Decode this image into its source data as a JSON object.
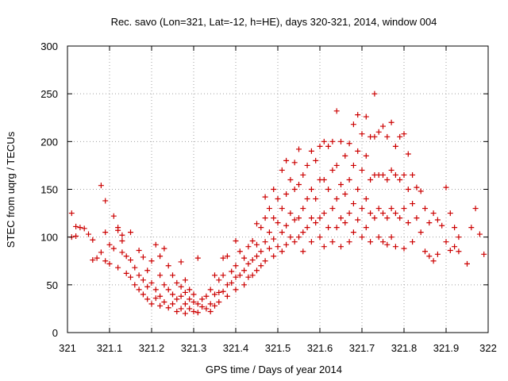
{
  "chart_data": {
    "type": "scatter",
    "title": "Rec. savo (Lon=321, Lat=-12, h=HE), days 320-321, 2014, window 004",
    "xlabel": "GPS time / Days of year 2014",
    "ylabel": "STEC from uqrg / TECUs",
    "xlim": [
      321,
      322
    ],
    "ylim": [
      0,
      300
    ],
    "xticks": [
      321,
      321.1,
      321.2,
      321.3,
      321.4,
      321.5,
      321.6,
      321.7,
      321.8,
      321.9,
      322
    ],
    "xtick_labels": [
      "321",
      "321.1",
      "321.2",
      "321.3",
      "321.4",
      "321.5",
      "321.6",
      "321.7",
      "321.8",
      "321.9",
      "322"
    ],
    "yticks": [
      0,
      50,
      100,
      150,
      200,
      250,
      300
    ],
    "ytick_labels": [
      "0",
      "50",
      "100",
      "150",
      "200",
      "250",
      "300"
    ],
    "grid": true,
    "marker": "plus",
    "marker_color": "#cc0000",
    "series": [
      {
        "name": "",
        "points": [
          [
            321.01,
            125
          ],
          [
            321.01,
            100
          ],
          [
            321.02,
            101
          ],
          [
            321.02,
            111
          ],
          [
            321.03,
            110
          ],
          [
            321.04,
            109
          ],
          [
            321.05,
            103
          ],
          [
            321.06,
            97
          ],
          [
            321.06,
            76
          ],
          [
            321.07,
            78
          ],
          [
            321.08,
            154
          ],
          [
            321.08,
            84
          ],
          [
            321.09,
            138
          ],
          [
            321.09,
            105
          ],
          [
            321.09,
            75
          ],
          [
            321.1,
            92
          ],
          [
            321.1,
            72
          ],
          [
            321.11,
            122
          ],
          [
            321.11,
            88
          ],
          [
            321.12,
            110
          ],
          [
            321.12,
            107
          ],
          [
            321.12,
            68
          ],
          [
            321.13,
            102
          ],
          [
            321.13,
            96
          ],
          [
            321.13,
            84
          ],
          [
            321.14,
            62
          ],
          [
            321.14,
            80
          ],
          [
            321.15,
            105
          ],
          [
            321.15,
            76
          ],
          [
            321.15,
            58
          ],
          [
            321.16,
            68
          ],
          [
            321.16,
            50
          ],
          [
            321.17,
            86
          ],
          [
            321.17,
            60
          ],
          [
            321.17,
            45
          ],
          [
            321.18,
            79
          ],
          [
            321.18,
            55
          ],
          [
            321.18,
            40
          ],
          [
            321.19,
            65
          ],
          [
            321.19,
            48
          ],
          [
            321.19,
            35
          ],
          [
            321.2,
            75
          ],
          [
            321.2,
            52
          ],
          [
            321.2,
            30
          ],
          [
            321.21,
            92
          ],
          [
            321.21,
            45
          ],
          [
            321.21,
            36
          ],
          [
            321.22,
            80
          ],
          [
            321.22,
            60
          ],
          [
            321.22,
            38
          ],
          [
            321.22,
            28
          ],
          [
            321.23,
            88
          ],
          [
            321.23,
            50
          ],
          [
            321.23,
            32
          ],
          [
            321.24,
            70
          ],
          [
            321.24,
            45
          ],
          [
            321.24,
            26
          ],
          [
            321.25,
            60
          ],
          [
            321.25,
            40
          ],
          [
            321.25,
            30
          ],
          [
            321.26,
            52
          ],
          [
            321.26,
            35
          ],
          [
            321.26,
            22
          ],
          [
            321.27,
            74
          ],
          [
            321.27,
            48
          ],
          [
            321.27,
            38
          ],
          [
            321.27,
            25
          ],
          [
            321.28,
            55
          ],
          [
            321.28,
            42
          ],
          [
            321.28,
            30
          ],
          [
            321.28,
            20
          ],
          [
            321.29,
            45
          ],
          [
            321.29,
            35
          ],
          [
            321.29,
            25
          ],
          [
            321.3,
            40
          ],
          [
            321.3,
            32
          ],
          [
            321.3,
            22
          ],
          [
            321.31,
            78
          ],
          [
            321.31,
            30
          ],
          [
            321.31,
            21
          ],
          [
            321.32,
            35
          ],
          [
            321.32,
            27
          ],
          [
            321.33,
            38
          ],
          [
            321.33,
            25
          ],
          [
            321.34,
            45
          ],
          [
            321.34,
            30
          ],
          [
            321.34,
            22
          ],
          [
            321.35,
            60
          ],
          [
            321.35,
            40
          ],
          [
            321.35,
            28
          ],
          [
            321.36,
            55
          ],
          [
            321.36,
            42
          ],
          [
            321.36,
            32
          ],
          [
            321.37,
            78
          ],
          [
            321.37,
            60
          ],
          [
            321.37,
            43
          ],
          [
            321.38,
            80
          ],
          [
            321.38,
            50
          ],
          [
            321.38,
            38
          ],
          [
            321.39,
            64
          ],
          [
            321.39,
            52
          ],
          [
            321.4,
            96
          ],
          [
            321.4,
            70
          ],
          [
            321.4,
            58
          ],
          [
            321.4,
            45
          ],
          [
            321.41,
            85
          ],
          [
            321.41,
            60
          ],
          [
            321.42,
            78
          ],
          [
            321.42,
            65
          ],
          [
            321.42,
            50
          ],
          [
            321.43,
            90
          ],
          [
            321.43,
            72
          ],
          [
            321.43,
            58
          ],
          [
            321.44,
            96
          ],
          [
            321.44,
            76
          ],
          [
            321.44,
            60
          ],
          [
            321.45,
            114
          ],
          [
            321.45,
            92
          ],
          [
            321.45,
            80
          ],
          [
            321.45,
            65
          ],
          [
            321.46,
            110
          ],
          [
            321.46,
            85
          ],
          [
            321.46,
            70
          ],
          [
            321.47,
            142
          ],
          [
            321.47,
            120
          ],
          [
            321.47,
            95
          ],
          [
            321.47,
            75
          ],
          [
            321.48,
            130
          ],
          [
            321.48,
            105
          ],
          [
            321.48,
            88
          ],
          [
            321.49,
            150
          ],
          [
            321.49,
            120
          ],
          [
            321.49,
            98
          ],
          [
            321.49,
            80
          ],
          [
            321.5,
            140
          ],
          [
            321.5,
            115
          ],
          [
            321.5,
            90
          ],
          [
            321.51,
            170
          ],
          [
            321.51,
            130
          ],
          [
            321.51,
            105
          ],
          [
            321.51,
            85
          ],
          [
            321.52,
            180
          ],
          [
            321.52,
            145
          ],
          [
            321.52,
            112
          ],
          [
            321.52,
            92
          ],
          [
            321.53,
            160
          ],
          [
            321.53,
            125
          ],
          [
            321.53,
            100
          ],
          [
            321.54,
            178
          ],
          [
            321.54,
            150
          ],
          [
            321.54,
            118
          ],
          [
            321.54,
            95
          ],
          [
            321.55,
            192
          ],
          [
            321.55,
            155
          ],
          [
            321.55,
            120
          ],
          [
            321.55,
            100
          ],
          [
            321.56,
            165
          ],
          [
            321.56,
            130
          ],
          [
            321.56,
            105
          ],
          [
            321.56,
            85
          ],
          [
            321.57,
            175
          ],
          [
            321.57,
            140
          ],
          [
            321.57,
            110
          ],
          [
            321.58,
            190
          ],
          [
            321.58,
            150
          ],
          [
            321.58,
            120
          ],
          [
            321.58,
            95
          ],
          [
            321.59,
            180
          ],
          [
            321.59,
            140
          ],
          [
            321.59,
            115
          ],
          [
            321.6,
            195
          ],
          [
            321.6,
            160
          ],
          [
            321.6,
            120
          ],
          [
            321.6,
            100
          ],
          [
            321.61,
            200
          ],
          [
            321.61,
            160
          ],
          [
            321.61,
            125
          ],
          [
            321.61,
            90
          ],
          [
            321.62,
            195
          ],
          [
            321.62,
            150
          ],
          [
            321.62,
            110
          ],
          [
            321.63,
            200
          ],
          [
            321.63,
            170
          ],
          [
            321.63,
            130
          ],
          [
            321.63,
            95
          ],
          [
            321.64,
            232
          ],
          [
            321.64,
            175
          ],
          [
            321.64,
            140
          ],
          [
            321.64,
            110
          ],
          [
            321.65,
            200
          ],
          [
            321.65,
            155
          ],
          [
            321.65,
            120
          ],
          [
            321.65,
            90
          ],
          [
            321.66,
            185
          ],
          [
            321.66,
            145
          ],
          [
            321.66,
            115
          ],
          [
            321.67,
            198
          ],
          [
            321.67,
            160
          ],
          [
            321.67,
            125
          ],
          [
            321.67,
            95
          ],
          [
            321.68,
            218
          ],
          [
            321.68,
            175
          ],
          [
            321.68,
            135
          ],
          [
            321.68,
            105
          ],
          [
            321.69,
            228
          ],
          [
            321.69,
            190
          ],
          [
            321.69,
            150
          ],
          [
            321.69,
            118
          ],
          [
            321.7,
            208
          ],
          [
            321.7,
            170
          ],
          [
            321.7,
            130
          ],
          [
            321.7,
            100
          ],
          [
            321.71,
            226
          ],
          [
            321.71,
            185
          ],
          [
            321.71,
            140
          ],
          [
            321.71,
            110
          ],
          [
            321.72,
            205
          ],
          [
            321.72,
            160
          ],
          [
            321.72,
            125
          ],
          [
            321.72,
            95
          ],
          [
            321.73,
            250
          ],
          [
            321.73,
            205
          ],
          [
            321.73,
            165
          ],
          [
            321.73,
            120
          ],
          [
            321.74,
            210
          ],
          [
            321.74,
            165
          ],
          [
            321.74,
            130
          ],
          [
            321.74,
            100
          ],
          [
            321.75,
            216
          ],
          [
            321.75,
            165
          ],
          [
            321.75,
            125
          ],
          [
            321.75,
            95
          ],
          [
            321.76,
            205
          ],
          [
            321.76,
            160
          ],
          [
            321.76,
            120
          ],
          [
            321.76,
            92
          ],
          [
            321.77,
            220
          ],
          [
            321.77,
            170
          ],
          [
            321.77,
            130
          ],
          [
            321.77,
            100
          ],
          [
            321.78,
            195
          ],
          [
            321.78,
            165
          ],
          [
            321.78,
            125
          ],
          [
            321.78,
            90
          ],
          [
            321.79,
            205
          ],
          [
            321.79,
            160
          ],
          [
            321.79,
            120
          ],
          [
            321.8,
            208
          ],
          [
            321.8,
            165
          ],
          [
            321.8,
            130
          ],
          [
            321.8,
            88
          ],
          [
            321.81,
            187
          ],
          [
            321.81,
            150
          ],
          [
            321.81,
            115
          ],
          [
            321.82,
            165
          ],
          [
            321.82,
            135
          ],
          [
            321.82,
            95
          ],
          [
            321.83,
            152
          ],
          [
            321.83,
            120
          ],
          [
            321.84,
            148
          ],
          [
            321.84,
            105
          ],
          [
            321.85,
            130
          ],
          [
            321.85,
            85
          ],
          [
            321.86,
            115
          ],
          [
            321.86,
            80
          ],
          [
            321.87,
            125
          ],
          [
            321.87,
            75
          ],
          [
            321.88,
            118
          ],
          [
            321.88,
            82
          ],
          [
            321.89,
            112
          ],
          [
            321.9,
            152
          ],
          [
            321.9,
            95
          ],
          [
            321.91,
            125
          ],
          [
            321.91,
            86
          ],
          [
            321.92,
            110
          ],
          [
            321.92,
            90
          ],
          [
            321.93,
            100
          ],
          [
            321.93,
            85
          ],
          [
            321.95,
            72
          ],
          [
            321.96,
            110
          ],
          [
            321.97,
            130
          ],
          [
            321.98,
            103
          ],
          [
            321.99,
            82
          ]
        ]
      }
    ]
  }
}
